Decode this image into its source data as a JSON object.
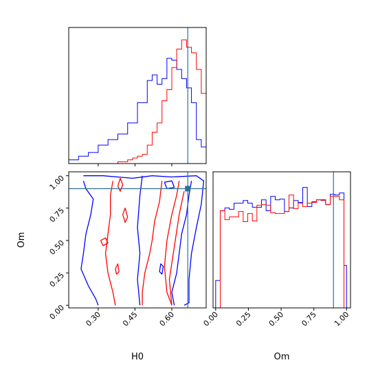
{
  "chart_data": {
    "type": "corner",
    "parameters": [
      "H0",
      "Om"
    ],
    "truth": {
      "H0": 0.665,
      "Om": 0.9
    },
    "colors": {
      "series_blue": "#0000ff",
      "series_red": "#ff0000",
      "truth": "#2e6f96"
    },
    "axes": {
      "h0_range": [
        0.18,
        0.74
      ],
      "om_range": [
        -0.02,
        1.03
      ],
      "h0_ticks": [
        0.3,
        0.45,
        0.6
      ],
      "h0_tick_labels": [
        "0.30",
        "0.45",
        "0.60"
      ],
      "om_ticks": [
        0.0,
        0.25,
        0.5,
        0.75,
        1.0
      ],
      "om_tick_labels": [
        "0.00",
        "0.25",
        "0.50",
        "0.75",
        "1.00"
      ],
      "xlabel_h0": "H0",
      "xlabel_om": "Om",
      "ylabel_om": "Om"
    },
    "h0_hist": {
      "bin_edges": [
        0.18,
        0.2,
        0.22,
        0.24,
        0.26,
        0.28,
        0.3,
        0.32,
        0.34,
        0.36,
        0.38,
        0.4,
        0.42,
        0.44,
        0.46,
        0.48,
        0.5,
        0.52,
        0.54,
        0.56,
        0.58,
        0.6,
        0.62,
        0.64,
        0.66,
        0.68,
        0.7,
        0.72,
        0.74
      ],
      "series": [
        {
          "name": "blue",
          "values": [
            2,
            2,
            4,
            4,
            6,
            6,
            10,
            10,
            13,
            13,
            16,
            16,
            22,
            22,
            33,
            33,
            45,
            48,
            43,
            46,
            57,
            56,
            51,
            46,
            41,
            33,
            13,
            9
          ]
        },
        {
          "name": "red",
          "values": [
            0,
            0,
            0,
            0,
            0,
            0,
            0,
            0,
            0,
            0,
            1,
            1,
            2,
            3,
            4,
            5,
            10,
            17,
            22,
            34,
            40,
            52,
            62,
            67,
            63,
            60,
            51,
            38
          ]
        }
      ]
    },
    "om_hist": {
      "bin_edges": [
        0.0,
        0.035,
        0.07,
        0.105,
        0.14,
        0.175,
        0.21,
        0.245,
        0.28,
        0.315,
        0.35,
        0.385,
        0.42,
        0.455,
        0.49,
        0.525,
        0.56,
        0.595,
        0.63,
        0.665,
        0.7,
        0.735,
        0.77,
        0.805,
        0.84,
        0.875,
        0.91,
        0.945,
        0.98,
        1.0
      ],
      "series": [
        {
          "name": "blue",
          "values": [
            40,
            142,
            146,
            144,
            153,
            153,
            157,
            153,
            147,
            147,
            158,
            142,
            163,
            158,
            159,
            141,
            146,
            157,
            154,
            176,
            148,
            155,
            158,
            158,
            151,
            166,
            165,
            168,
            62
          ]
        },
        {
          "name": "red",
          "values": [
            0,
            142,
            129,
            133,
            133,
            141,
            126,
            138,
            127,
            150,
            151,
            150,
            139,
            138,
            138,
            141,
            165,
            145,
            153,
            148,
            153,
            154,
            158,
            157,
            151,
            163,
            163,
            158,
            0
          ]
        }
      ]
    },
    "contours_2d": {
      "series": [
        {
          "name": "blue",
          "paths": [
            [
              [
                0.24,
                1.0
              ],
              [
                0.32,
                1.0
              ],
              [
                0.38,
                0.99
              ],
              [
                0.44,
                0.98
              ],
              [
                0.52,
                1.0
              ],
              [
                0.6,
                0.99
              ],
              [
                0.7,
                1.0
              ],
              [
                0.73,
                0.96
              ],
              [
                0.72,
                0.78
              ],
              [
                0.7,
                0.6
              ],
              [
                0.68,
                0.4
              ],
              [
                0.67,
                0.2
              ],
              [
                0.67,
                0.02
              ],
              [
                0.65,
                0.0
              ]
            ],
            [
              [
                0.3,
                0.0
              ],
              [
                0.29,
                0.05
              ],
              [
                0.26,
                0.15
              ],
              [
                0.23,
                0.28
              ],
              [
                0.24,
                0.4
              ],
              [
                0.25,
                0.55
              ],
              [
                0.27,
                0.7
              ],
              [
                0.28,
                0.82
              ],
              [
                0.25,
                0.9
              ],
              [
                0.24,
                0.96
              ]
            ],
            [
              [
                0.48,
                1.0
              ],
              [
                0.47,
                0.85
              ],
              [
                0.46,
                0.6
              ],
              [
                0.47,
                0.4
              ],
              [
                0.46,
                0.2
              ],
              [
                0.47,
                0.0
              ]
            ],
            [
              [
                0.61,
                0.0
              ],
              [
                0.6,
                0.1
              ],
              [
                0.62,
                0.25
              ],
              [
                0.63,
                0.4
              ],
              [
                0.64,
                0.55
              ],
              [
                0.66,
                0.7
              ],
              [
                0.67,
                0.85
              ],
              [
                0.68,
                0.96
              ]
            ],
            [
              [
                0.57,
                0.95
              ],
              [
                0.6,
                0.96
              ],
              [
                0.61,
                0.91
              ],
              [
                0.58,
                0.9
              ],
              [
                0.57,
                0.95
              ]
            ],
            [
              [
                0.56,
                0.24
              ],
              [
                0.565,
                0.3
              ],
              [
                0.555,
                0.32
              ],
              [
                0.55,
                0.26
              ],
              [
                0.56,
                0.24
              ]
            ]
          ]
        },
        {
          "name": "red",
          "paths": [
            [
              [
                0.37,
                0.0
              ],
              [
                0.36,
                0.1
              ],
              [
                0.34,
                0.25
              ],
              [
                0.33,
                0.4
              ],
              [
                0.34,
                0.55
              ],
              [
                0.35,
                0.7
              ],
              [
                0.35,
                0.85
              ],
              [
                0.36,
                0.96
              ]
            ],
            [
              [
                0.56,
                0.96
              ],
              [
                0.55,
                0.8
              ],
              [
                0.53,
                0.65
              ],
              [
                0.52,
                0.5
              ],
              [
                0.51,
                0.4
              ],
              [
                0.49,
                0.25
              ],
              [
                0.48,
                0.1
              ],
              [
                0.48,
                0.0
              ]
            ],
            [
              [
                0.6,
                0.0
              ],
              [
                0.58,
                0.1
              ],
              [
                0.57,
                0.3
              ],
              [
                0.58,
                0.5
              ],
              [
                0.6,
                0.7
              ],
              [
                0.62,
                0.85
              ],
              [
                0.63,
                0.96
              ]
            ],
            [
              [
                0.6,
                0.0
              ],
              [
                0.59,
                0.2
              ],
              [
                0.61,
                0.45
              ],
              [
                0.63,
                0.7
              ],
              [
                0.65,
                0.88
              ]
            ],
            [
              [
                0.38,
                0.92
              ],
              [
                0.39,
                0.98
              ],
              [
                0.4,
                0.93
              ],
              [
                0.39,
                0.88
              ],
              [
                0.38,
                0.92
              ]
            ],
            [
              [
                0.31,
                0.5
              ],
              [
                0.33,
                0.52
              ],
              [
                0.34,
                0.48
              ],
              [
                0.32,
                0.46
              ],
              [
                0.31,
                0.5
              ]
            ],
            [
              [
                0.4,
                0.7
              ],
              [
                0.41,
                0.75
              ],
              [
                0.42,
                0.68
              ],
              [
                0.41,
                0.64
              ],
              [
                0.4,
                0.7
              ]
            ],
            [
              [
                0.37,
                0.28
              ],
              [
                0.38,
                0.32
              ],
              [
                0.385,
                0.26
              ],
              [
                0.375,
                0.24
              ],
              [
                0.37,
                0.28
              ]
            ]
          ]
        }
      ]
    }
  }
}
